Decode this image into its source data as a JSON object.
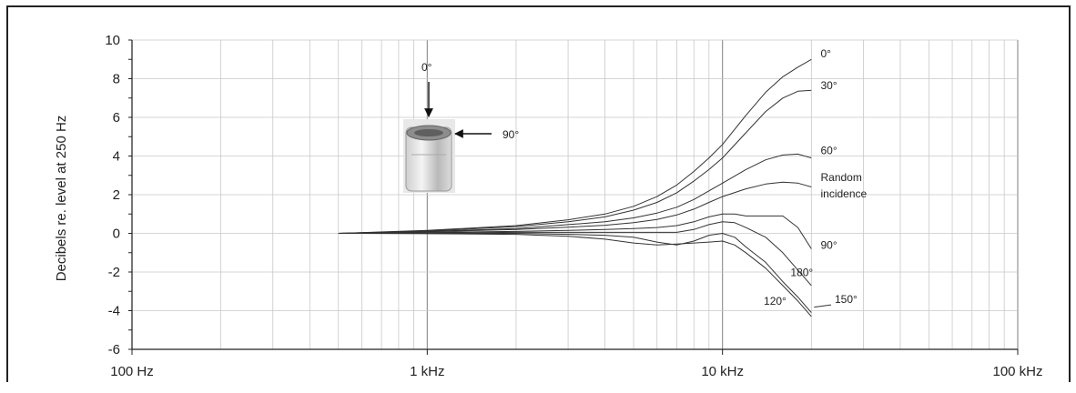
{
  "chart_data": {
    "type": "line",
    "xscale": "log",
    "xlim": [
      100,
      100000
    ],
    "ylim": [
      -6,
      10
    ],
    "grid": true,
    "ylabel": "Decibels re. level at 250 Hz",
    "xlabel": "",
    "x_ticks": [
      {
        "value": 100,
        "label": "100 Hz"
      },
      {
        "value": 1000,
        "label": "1 kHz"
      },
      {
        "value": 10000,
        "label": "10 kHz"
      },
      {
        "value": 100000,
        "label": "100 kHz"
      }
    ],
    "y_ticks": [
      {
        "value": 10,
        "label": "10"
      },
      {
        "value": 8,
        "label": "8"
      },
      {
        "value": 6,
        "label": "6"
      },
      {
        "value": 4,
        "label": "4"
      },
      {
        "value": 2,
        "label": "2"
      },
      {
        "value": 0,
        "label": "0"
      },
      {
        "value": -2,
        "label": "-2"
      },
      {
        "value": -4,
        "label": "-4"
      },
      {
        "value": -6,
        "label": "-6"
      }
    ],
    "series": [
      {
        "name": "0°",
        "x": [
          500,
          1000,
          2000,
          3000,
          4000,
          5000,
          6000,
          7000,
          8000,
          9000,
          10000,
          12000,
          14000,
          16000,
          18000,
          20000
        ],
        "y": [
          0,
          0.15,
          0.4,
          0.7,
          1.0,
          1.4,
          1.9,
          2.5,
          3.2,
          3.9,
          4.6,
          6.1,
          7.3,
          8.1,
          8.6,
          9.0
        ]
      },
      {
        "name": "30°",
        "x": [
          500,
          1000,
          2000,
          3000,
          4000,
          5000,
          6000,
          7000,
          8000,
          9000,
          10000,
          12000,
          14000,
          16000,
          18000,
          20000
        ],
        "y": [
          0,
          0.12,
          0.35,
          0.6,
          0.85,
          1.2,
          1.6,
          2.1,
          2.7,
          3.3,
          3.9,
          5.2,
          6.3,
          7.0,
          7.35,
          7.4
        ]
      },
      {
        "name": "60°",
        "x": [
          500,
          1000,
          2000,
          3000,
          4000,
          5000,
          6000,
          7000,
          8000,
          9000,
          10000,
          12000,
          14000,
          16000,
          18000,
          20000
        ],
        "y": [
          0,
          0.1,
          0.25,
          0.45,
          0.6,
          0.8,
          1.05,
          1.35,
          1.75,
          2.2,
          2.6,
          3.3,
          3.8,
          4.05,
          4.1,
          3.9
        ]
      },
      {
        "name": "Random incidence",
        "x": [
          500,
          1000,
          2000,
          3000,
          4000,
          5000,
          6000,
          7000,
          8000,
          9000,
          10000,
          12000,
          14000,
          16000,
          18000,
          20000
        ],
        "y": [
          0,
          0.08,
          0.2,
          0.32,
          0.42,
          0.55,
          0.72,
          0.95,
          1.25,
          1.6,
          1.9,
          2.3,
          2.55,
          2.65,
          2.6,
          2.4
        ]
      },
      {
        "name": "90°",
        "x": [
          500,
          1000,
          2000,
          3000,
          4000,
          5000,
          6000,
          7000,
          8000,
          9000,
          10000,
          11000,
          12000,
          14000,
          16000,
          18000,
          20000
        ],
        "y": [
          0,
          0.05,
          0.1,
          0.15,
          0.2,
          0.25,
          0.3,
          0.4,
          0.6,
          0.85,
          1.0,
          1.0,
          0.9,
          0.9,
          0.9,
          0.3,
          -0.8
        ]
      },
      {
        "name": "180°",
        "x": [
          500,
          1000,
          2000,
          3000,
          4000,
          5000,
          6000,
          7000,
          8000,
          9000,
          10000,
          11000,
          12000,
          14000,
          16000,
          18000,
          20000
        ],
        "y": [
          0,
          0.02,
          0.05,
          0.05,
          0.05,
          0.05,
          0.05,
          0.05,
          0.2,
          0.45,
          0.6,
          0.55,
          0.3,
          -0.2,
          -1.0,
          -1.9,
          -2.7
        ]
      },
      {
        "name": "150°",
        "x": [
          500,
          1000,
          2000,
          3000,
          4000,
          5000,
          6000,
          7000,
          8000,
          9000,
          10000,
          11000,
          12000,
          14000,
          16000,
          18000,
          20000
        ],
        "y": [
          0,
          0,
          0,
          -0.05,
          -0.1,
          -0.2,
          -0.45,
          -0.6,
          -0.4,
          -0.1,
          0.0,
          -0.2,
          -0.7,
          -1.5,
          -2.5,
          -3.3,
          -4.1
        ]
      },
      {
        "name": "120°",
        "x": [
          500,
          1000,
          2000,
          3000,
          4000,
          5000,
          6000,
          7000,
          8000,
          9000,
          10000,
          11000,
          12000,
          14000,
          16000,
          18000,
          20000
        ],
        "y": [
          0,
          -0.02,
          -0.05,
          -0.15,
          -0.3,
          -0.5,
          -0.6,
          -0.55,
          -0.5,
          -0.45,
          -0.4,
          -0.6,
          -1.0,
          -1.8,
          -2.7,
          -3.5,
          -4.3
        ]
      }
    ],
    "curve_labels": [
      {
        "series": "0°",
        "text": "0°",
        "x": 21500,
        "y": 9.1
      },
      {
        "series": "30°",
        "text": "30°",
        "x": 21500,
        "y": 7.45
      },
      {
        "series": "60°",
        "text": "60°",
        "x": 21500,
        "y": 4.1
      },
      {
        "series": "Random incidence",
        "text": "Random",
        "x": 21500,
        "y": 2.7
      },
      {
        "series": "Random incidence",
        "text": "incidence",
        "x": 21500,
        "y": 1.85
      },
      {
        "series": "90°",
        "text": "90°",
        "x": 21500,
        "y": -0.8
      },
      {
        "series": "180°",
        "text": "180°",
        "x": 17000,
        "y": -2.2
      },
      {
        "series": "150°",
        "text": "150°",
        "x": 24000,
        "y": -3.6
      },
      {
        "series": "120°",
        "text": "120°",
        "x": 13800,
        "y": -3.7
      }
    ],
    "annotations": {
      "top_arrow_label": "0°",
      "side_arrow_label": "90°"
    }
  }
}
